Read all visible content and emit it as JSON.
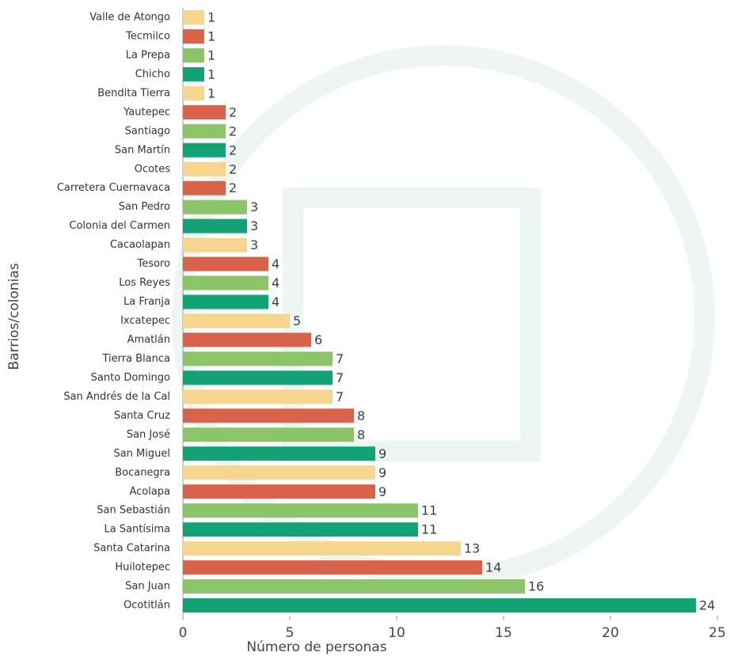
{
  "chart_data": {
    "type": "bar",
    "orientation": "horizontal",
    "x_label": "Número de personas",
    "y_label": "Barrios/colonias",
    "categories": [
      "Valle de Atongo",
      "Tecmilco",
      "La Prepa",
      "Chicho",
      "Bendita Tierra",
      "Yautepec",
      "Santiago",
      "San Martín",
      "Ocotes",
      "Carretera Cuernavaca",
      "San Pedro",
      "Colonia del Carmen",
      "Cacaolapan",
      "Tesoro",
      "Los Reyes",
      "La Franja",
      "Ixcatepec",
      "Amatlán",
      "Tierra Blanca",
      "Santo Domingo",
      "San Andrés de la Cal",
      "Santa Cruz",
      "San José",
      "San Miguel",
      "Bocanegra",
      "Acolapa",
      "San Sebastián",
      "La Santísima",
      "Santa Catarina",
      "Huilotepec",
      "San Juan",
      "Ocotitlán"
    ],
    "values": [
      1,
      1,
      1,
      1,
      1,
      2,
      2,
      2,
      2,
      2,
      3,
      3,
      3,
      4,
      4,
      4,
      5,
      6,
      7,
      7,
      7,
      8,
      8,
      9,
      9,
      9,
      11,
      11,
      13,
      14,
      16,
      24
    ],
    "colors": [
      "#f6d58f",
      "#d9634a",
      "#8cc46a",
      "#13a176",
      "#f6d58f",
      "#d9634a",
      "#8cc46a",
      "#13a176",
      "#f6d58f",
      "#d9634a",
      "#8cc46a",
      "#13a176",
      "#f6d58f",
      "#d9634a",
      "#8cc46a",
      "#13a176",
      "#f6d58f",
      "#d9634a",
      "#8cc46a",
      "#13a176",
      "#f6d58f",
      "#d9634a",
      "#8cc46a",
      "#13a176",
      "#f6d58f",
      "#d9634a",
      "#8cc46a",
      "#13a176",
      "#f6d58f",
      "#d9634a",
      "#8cc46a",
      "#13a176"
    ],
    "xlim": [
      0,
      25
    ],
    "xticks": [
      0,
      5,
      10,
      15,
      20,
      25
    ]
  }
}
